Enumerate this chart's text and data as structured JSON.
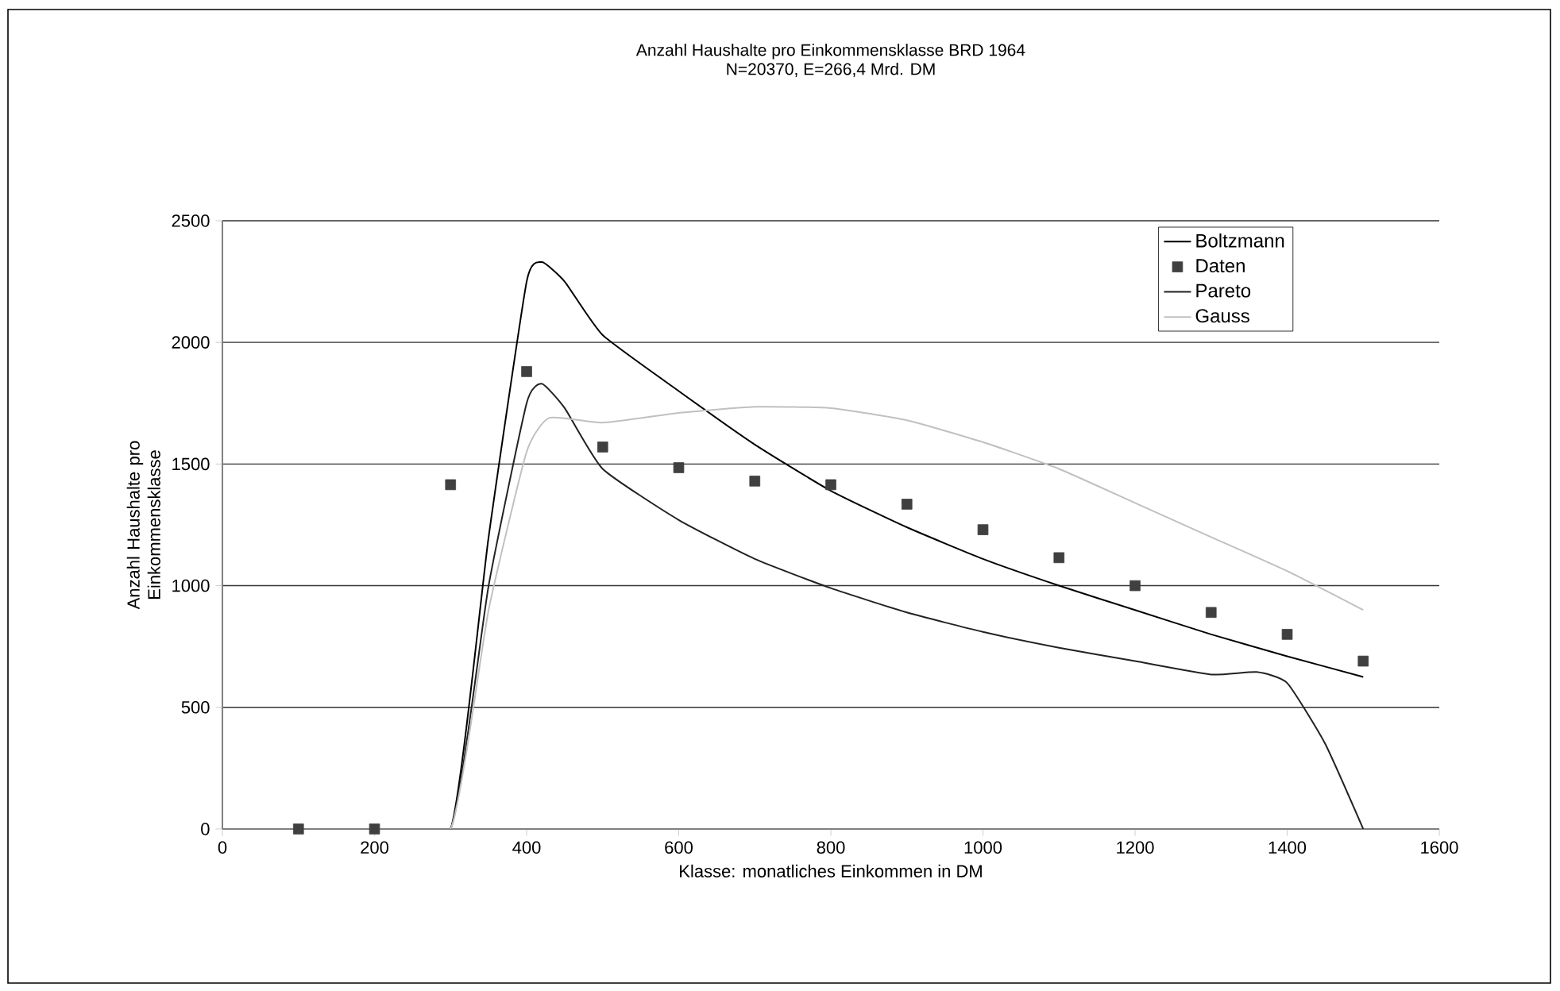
{
  "chart_data": {
    "type": "line",
    "title": "Anzahl Haushalte pro Einkommensklasse BRD 1964",
    "subtitle": "N=20370, E=266,4 Mrd. DM",
    "xlabel": "Klasse: monatliches Einkommen in DM",
    "ylabel": "Anzahl Haushalte pro Einkommensklasse",
    "xlim": [
      0,
      1600
    ],
    "xticks": [
      0,
      200,
      400,
      600,
      800,
      1000,
      1200,
      1400,
      1600
    ],
    "ylim": [
      0,
      2500
    ],
    "yticks": [
      0,
      500,
      1000,
      1500,
      2000,
      2500
    ],
    "grid": "y",
    "legend": "top right",
    "series": [
      {
        "name": "Boltzmann",
        "color": "#000000",
        "marker": "none",
        "x": [
          200,
          300,
          350,
          400,
          420,
          450,
          500,
          600,
          700,
          800,
          900,
          1000,
          1100,
          1200,
          1300,
          1400,
          1500
        ],
        "values": [
          0,
          0,
          1200,
          2250,
          2330,
          2250,
          2030,
          1800,
          1580,
          1390,
          1240,
          1110,
          1000,
          900,
          800,
          710,
          625
        ]
      },
      {
        "name": "Daten",
        "type": "scatter",
        "color": "#404040",
        "marker": "square",
        "x": [
          100,
          200,
          300,
          400,
          500,
          600,
          700,
          800,
          900,
          1000,
          1100,
          1200,
          1300,
          1400,
          1500
        ],
        "values": [
          0,
          0,
          1415,
          1880,
          1570,
          1485,
          1430,
          1415,
          1335,
          1230,
          1115,
          1000,
          890,
          800,
          690
        ]
      },
      {
        "name": "Pareto",
        "color": "#222222",
        "marker": "none",
        "x": [
          200,
          300,
          350,
          400,
          420,
          450,
          500,
          600,
          700,
          800,
          900,
          1000,
          1100,
          1200,
          1300,
          1360,
          1400,
          1450,
          1500
        ],
        "values": [
          0,
          0,
          1000,
          1750,
          1830,
          1730,
          1480,
          1270,
          1110,
          990,
          890,
          810,
          745,
          690,
          635,
          645,
          600,
          350,
          0
        ]
      },
      {
        "name": "Gauss",
        "color": "#c0c0c0",
        "marker": "none",
        "x": [
          200,
          300,
          350,
          400,
          430,
          500,
          600,
          700,
          800,
          900,
          1000,
          1100,
          1200,
          1300,
          1400,
          1500
        ],
        "values": [
          0,
          0,
          900,
          1550,
          1690,
          1670,
          1710,
          1735,
          1730,
          1680,
          1590,
          1480,
          1340,
          1200,
          1060,
          900
        ]
      }
    ]
  }
}
